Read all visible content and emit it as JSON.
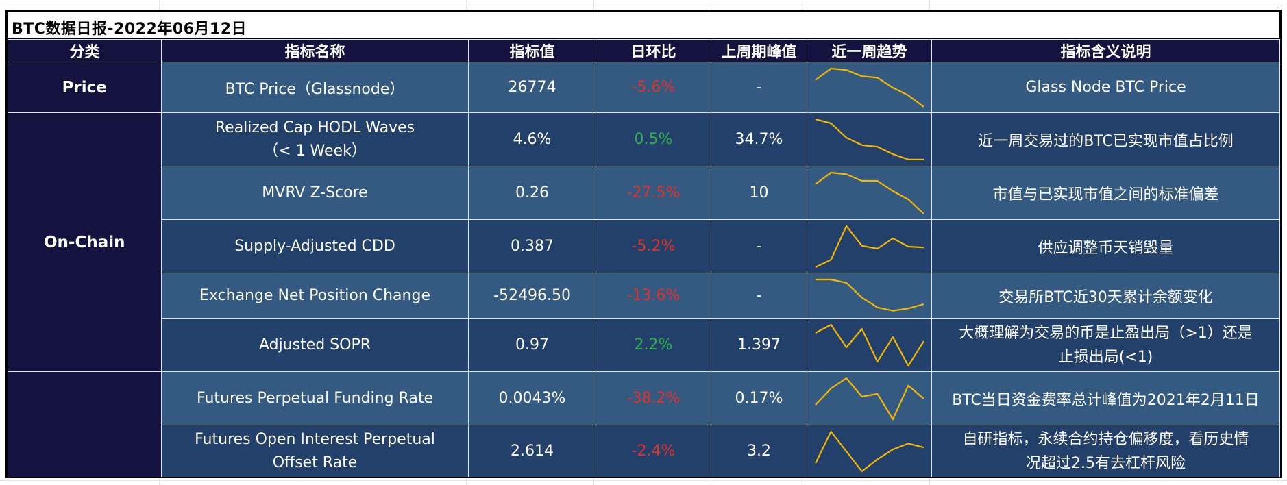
{
  "title": "BTC数据日报-2022年06月12日",
  "columns": [
    "分类",
    "指标名称",
    "指标值",
    "日环比",
    "上周期峰值",
    "近一周趋势",
    "指标含义说明"
  ],
  "colors": {
    "header_bg": "#14133f",
    "row_light": "#345a82",
    "row_dark": "#23406a",
    "negative": "#e0312c",
    "positive": "#2fb14a",
    "sparkline": "#f5b800"
  },
  "categories": [
    "Price",
    "On-Chain",
    ""
  ],
  "rows": [
    {
      "name": "BTC Price（Glassnode）",
      "value": "26774",
      "change": "-5.6%",
      "change_sign": "neg",
      "peak": "-",
      "desc": "Glass Node BTC Price",
      "trend": [
        0.7,
        1.0,
        0.96,
        0.8,
        0.76,
        0.5,
        0.3,
        0.0
      ]
    },
    {
      "name_lines": [
        "Realized Cap HODL Waves",
        "（< 1 Week）"
      ],
      "value": "4.6%",
      "change": "0.5%",
      "change_sign": "pos",
      "peak": "34.7%",
      "desc": "近一周交易过的BTC已实现市值占比例",
      "trend": [
        1.0,
        0.9,
        0.55,
        0.37,
        0.33,
        0.15,
        0.02,
        0.02
      ]
    },
    {
      "name": "MVRV Z-Score",
      "value": "0.26",
      "change": "-27.5%",
      "change_sign": "neg",
      "peak": "10",
      "desc": "市值与已实现市值之间的标准偏差",
      "trend": [
        0.72,
        1.0,
        0.96,
        0.8,
        0.8,
        0.55,
        0.35,
        0.0
      ]
    },
    {
      "name": "Supply-Adjusted CDD",
      "value": "0.387",
      "change": "-5.2%",
      "change_sign": "neg",
      "peak": "-",
      "desc": "供应调整币天销毁量",
      "trend": [
        0.0,
        0.18,
        1.0,
        0.52,
        0.45,
        0.7,
        0.5,
        0.48
      ]
    },
    {
      "name": "Exchange Net Position Change",
      "value": "-52496.50",
      "change": "-13.6%",
      "change_sign": "neg",
      "peak": "-",
      "desc": "交易所BTC近30天累计余额变化",
      "trend": [
        1.0,
        1.0,
        0.9,
        0.45,
        0.15,
        0.05,
        0.12,
        0.25
      ]
    },
    {
      "name": "Adjusted SOPR",
      "value": "0.97",
      "change": "2.2%",
      "change_sign": "pos",
      "peak": "1.397",
      "desc_lines": [
        "大概理解为交易的币是止盈出局（>1）还是",
        "止损出局(<1)"
      ],
      "trend": [
        0.8,
        1.0,
        0.45,
        0.9,
        0.1,
        0.7,
        0.0,
        0.6
      ]
    },
    {
      "name": "Futures Perpetual Funding Rate",
      "value": "0.0043%",
      "change": "-38.2%",
      "change_sign": "neg",
      "peak": "0.17%",
      "desc": "BTC当日资金费率总计峰值为2021年2月11日",
      "trend": [
        0.35,
        0.75,
        1.0,
        0.55,
        0.62,
        0.0,
        0.82,
        0.5
      ]
    },
    {
      "name_lines": [
        "Futures Open Interest Perpetual",
        "Offset Rate"
      ],
      "value": "2.614",
      "change": "-2.4%",
      "change_sign": "neg",
      "peak": "3.2",
      "desc_lines": [
        "自研指标，永续合约持仓偏移度，看历史情",
        "况超过2.5有去杠杆风险"
      ],
      "trend": [
        0.2,
        1.0,
        0.5,
        0.0,
        0.3,
        0.55,
        0.7,
        0.6
      ]
    }
  ]
}
